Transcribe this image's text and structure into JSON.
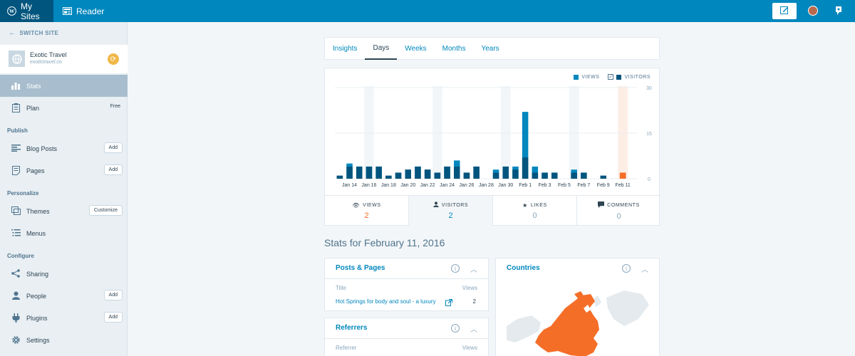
{
  "topbar": {
    "my_sites": "My Sites",
    "reader": "Reader",
    "icons": [
      "wordpress-icon",
      "reader-icon",
      "write-icon",
      "avatar",
      "notifications-icon"
    ]
  },
  "sidebar": {
    "switch_site": "SWITCH SITE",
    "site_name": "Exotic Travel",
    "site_domain": "exotictravel.co",
    "items": [
      {
        "label": "Stats",
        "icon": "stats-icon",
        "active": true
      },
      {
        "label": "Plan",
        "icon": "plan-icon",
        "badge": "Free"
      },
      {
        "label": "Blog Posts",
        "icon": "posts-icon",
        "button": "Add"
      },
      {
        "label": "Pages",
        "icon": "pages-icon",
        "button": "Add"
      },
      {
        "label": "Themes",
        "icon": "themes-icon",
        "button": "Customize"
      },
      {
        "label": "Menus",
        "icon": "menus-icon"
      },
      {
        "label": "Sharing",
        "icon": "sharing-icon"
      },
      {
        "label": "People",
        "icon": "people-icon",
        "button": "Add"
      },
      {
        "label": "Plugins",
        "icon": "plugins-icon",
        "button": "Add"
      },
      {
        "label": "Settings",
        "icon": "settings-icon"
      }
    ],
    "sections": {
      "publish": "Publish",
      "personalize": "Personalize",
      "configure": "Configure"
    }
  },
  "tabs": [
    "Insights",
    "Days",
    "Weeks",
    "Months",
    "Years"
  ],
  "active_tab": "Days",
  "legend": {
    "views": "VIEWS",
    "visitors": "VISITORS"
  },
  "colors": {
    "views": "#0087be",
    "visitors": "#00557e",
    "selected": "#f56e28",
    "highlight": "#f3f6f8"
  },
  "chart_data": {
    "type": "bar",
    "categories": [
      "Jan 13",
      "Jan 14",
      "Jan 15",
      "Jan 16",
      "Jan 17",
      "Jan 18",
      "Jan 19",
      "Jan 20",
      "Jan 21",
      "Jan 22",
      "Jan 23",
      "Jan 24",
      "Jan 25",
      "Jan 26",
      "Jan 27",
      "Jan 28",
      "Jan 29",
      "Jan 30",
      "Jan 31",
      "Feb 1",
      "Feb 2",
      "Feb 3",
      "Feb 4",
      "Feb 5",
      "Feb 6",
      "Feb 7",
      "Feb 8",
      "Feb 9",
      "Feb 10",
      "Feb 11"
    ],
    "tick_labels": [
      "Jan 14",
      "Jan 16",
      "Jan 18",
      "Jan 20",
      "Jan 22",
      "Jan 24",
      "Jan 26",
      "Jan 28",
      "Jan 30",
      "Feb 1",
      "Feb 3",
      "Feb 5",
      "Feb 7",
      "Feb 9",
      "Feb 11"
    ],
    "series": [
      {
        "name": "Views",
        "values": [
          1,
          5,
          4,
          4,
          4,
          1,
          2,
          3,
          4,
          3,
          2,
          4,
          6,
          2,
          4,
          0,
          3,
          4,
          4,
          22,
          4,
          2,
          2,
          0,
          3,
          2,
          0,
          1,
          0,
          2
        ]
      },
      {
        "name": "Visitors",
        "values": [
          1,
          4,
          4,
          4,
          4,
          1,
          2,
          3,
          4,
          3,
          2,
          4,
          4,
          2,
          4,
          0,
          2,
          4,
          3,
          7,
          2,
          2,
          2,
          0,
          2,
          2,
          0,
          1,
          0,
          2
        ]
      }
    ],
    "highlighted": [
      "Jan 16",
      "Jan 23",
      "Jan 30",
      "Feb 6"
    ],
    "selected": "Feb 11",
    "y_ticks": [
      0,
      15,
      30
    ],
    "ylim": [
      0,
      30
    ]
  },
  "summary": [
    {
      "label": "VIEWS",
      "value": "2",
      "icon": "eye-icon"
    },
    {
      "label": "VISITORS",
      "value": "2",
      "icon": "person-icon"
    },
    {
      "label": "LIKES",
      "value": "0",
      "icon": "star-icon"
    },
    {
      "label": "COMMENTS",
      "value": "0",
      "icon": "comment-icon"
    }
  ],
  "stats_for": "Stats for February 11, 2016",
  "posts_pages": {
    "title": "Posts & Pages",
    "col_title": "Title",
    "col_views": "Views",
    "rows": [
      {
        "title": "Hot Springs for body and soul - a luxury",
        "views": "2"
      }
    ]
  },
  "countries": {
    "title": "Countries"
  },
  "referrers": {
    "title": "Referrers",
    "col_referrer": "Referrer",
    "col_views": "Views"
  }
}
